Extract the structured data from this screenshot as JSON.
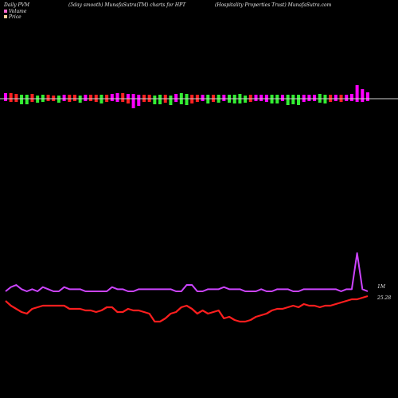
{
  "header": {
    "left": "Daily PVM",
    "center_left": "(5day smooth) MunafaSutra(TM) charts for HPT",
    "center_right": "(Hospitality Properties Trust) MunafaSutra.com"
  },
  "legend": {
    "items": [
      {
        "label": "Volume",
        "color": "#ff66cc"
      },
      {
        "label": "Price",
        "color": "#ffcc99"
      }
    ]
  },
  "colors": {
    "background": "#000000",
    "baseline": "#cfcfcf",
    "bar_magenta": "#ff00ff",
    "bar_red": "#ff2222",
    "bar_green": "#33ee33",
    "volume_line": "#cc44ff",
    "price_line": "#ff1e1e"
  },
  "chart_data": {
    "type": "line",
    "volume_end_label": "1M",
    "price_end_label": "25.28",
    "bars": {
      "up_colors": [
        "m",
        "r",
        "r",
        "g",
        "g",
        "r",
        "g",
        "g",
        "r",
        "r",
        "g",
        "m",
        "r",
        "r",
        "g",
        "m",
        "r",
        "r",
        "g",
        "r",
        "m",
        "m",
        "r",
        "m",
        "m",
        "m",
        "r",
        "r",
        "g",
        "g",
        "r",
        "g",
        "m",
        "g",
        "g",
        "r",
        "r",
        "m",
        "g",
        "r",
        "g",
        "m",
        "g",
        "g",
        "g",
        "g",
        "r",
        "m",
        "m",
        "m",
        "g",
        "g",
        "m",
        "g",
        "g",
        "g",
        "m",
        "m",
        "m",
        "g",
        "g",
        "r",
        "m",
        "r",
        "m",
        "m",
        "m",
        "m",
        "m"
      ],
      "up": [
        7,
        7,
        6,
        5,
        5,
        6,
        4,
        5,
        5,
        4,
        4,
        5,
        5,
        5,
        4,
        5,
        5,
        5,
        5,
        5,
        6,
        7,
        7,
        6,
        6,
        5,
        5,
        5,
        4,
        5,
        5,
        4,
        6,
        7,
        6,
        5,
        5,
        5,
        5,
        5,
        5,
        5,
        5,
        5,
        6,
        4,
        5,
        5,
        5,
        5,
        5,
        5,
        5,
        5,
        5,
        5,
        5,
        5,
        5,
        6,
        5,
        5,
        5,
        5,
        5,
        6,
        17,
        12,
        8
      ],
      "down_colors": [
        "m",
        "r",
        "r",
        "g",
        "g",
        "r",
        "g",
        "g",
        "r",
        "r",
        "g",
        "m",
        "r",
        "r",
        "g",
        "m",
        "r",
        "r",
        "g",
        "r",
        "m",
        "m",
        "r",
        "r",
        "m",
        "m",
        "r",
        "r",
        "g",
        "g",
        "r",
        "g",
        "m",
        "g",
        "g",
        "r",
        "r",
        "m",
        "g",
        "r",
        "g",
        "m",
        "g",
        "g",
        "g",
        "g",
        "r",
        "m",
        "m",
        "m",
        "g",
        "g",
        "m",
        "g",
        "g",
        "g",
        "m",
        "m",
        "m",
        "g",
        "g",
        "r",
        "m",
        "r",
        "m",
        "m",
        "m",
        "m",
        "m"
      ],
      "down": [
        3,
        4,
        4,
        7,
        7,
        4,
        5,
        4,
        3,
        3,
        5,
        3,
        4,
        3,
        5,
        3,
        3,
        4,
        6,
        4,
        3,
        4,
        4,
        6,
        12,
        9,
        4,
        4,
        7,
        7,
        5,
        8,
        4,
        7,
        8,
        6,
        4,
        3,
        6,
        4,
        5,
        3,
        5,
        6,
        6,
        5,
        4,
        3,
        3,
        4,
        6,
        6,
        3,
        8,
        7,
        8,
        4,
        3,
        3,
        5,
        6,
        4,
        3,
        4,
        3,
        3,
        4,
        4,
        3
      ]
    },
    "series": [
      {
        "role": "volume",
        "values": [
          44,
          46,
          47,
          45,
          44,
          45,
          44,
          46,
          45,
          44,
          44,
          46,
          45,
          45,
          45,
          44,
          44,
          44,
          44,
          44,
          46,
          45,
          45,
          44,
          44,
          45,
          45,
          45,
          45,
          45,
          45,
          45,
          44,
          44,
          47,
          47,
          44,
          44,
          45,
          45,
          45,
          46,
          45,
          45,
          45,
          44,
          44,
          44,
          45,
          44,
          44,
          45,
          45,
          45,
          44,
          44,
          45,
          45,
          45,
          45,
          45,
          45,
          45,
          44,
          45,
          45,
          62,
          45,
          44
        ]
      },
      {
        "role": "price",
        "values": [
          25.9,
          25.6,
          25.4,
          25.2,
          25.1,
          25.4,
          25.5,
          25.6,
          25.6,
          25.6,
          25.6,
          25.6,
          25.4,
          25.4,
          25.4,
          25.3,
          25.3,
          25.2,
          25.3,
          25.5,
          25.5,
          25.2,
          25.2,
          25.4,
          25.3,
          25.3,
          25.2,
          25.1,
          24.6,
          24.6,
          24.8,
          25.1,
          25.2,
          25.5,
          25.6,
          25.4,
          25.1,
          25.3,
          25.1,
          25.2,
          25.3,
          24.8,
          24.9,
          24.7,
          24.6,
          24.6,
          24.7,
          24.9,
          25.0,
          25.1,
          25.3,
          25.4,
          25.4,
          25.5,
          25.6,
          25.5,
          25.7,
          25.6,
          25.6,
          25.5,
          25.6,
          25.6,
          25.7,
          25.8,
          25.9,
          26.0,
          26.0,
          26.1,
          26.2
        ]
      }
    ]
  }
}
